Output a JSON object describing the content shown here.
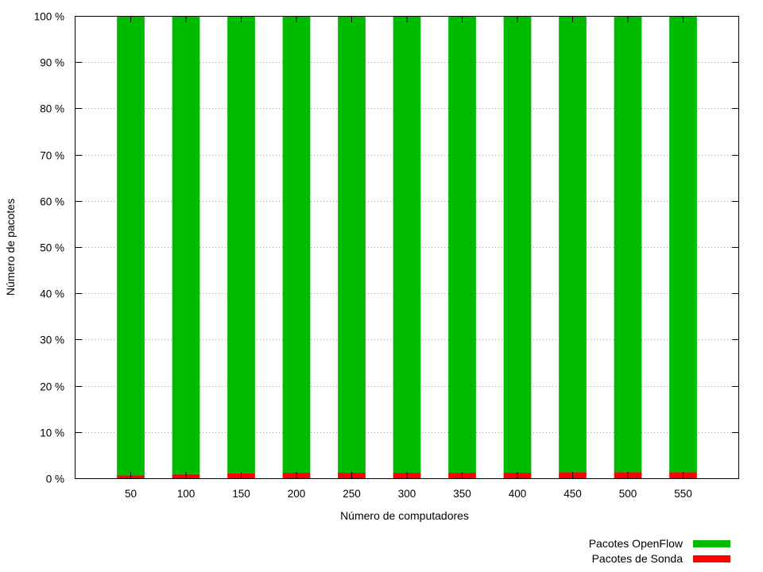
{
  "chart_data": {
    "type": "bar",
    "stacked": true,
    "xlabel": "Número de computadores",
    "ylabel": "Número de pacotes",
    "categories": [
      "50",
      "100",
      "150",
      "200",
      "250",
      "300",
      "350",
      "400",
      "450",
      "500",
      "550"
    ],
    "series": [
      {
        "name": "Pacotes de Sonda",
        "color": "#ff0000",
        "values": [
          0.6,
          0.9,
          1.1,
          1.2,
          1.2,
          1.2,
          1.2,
          1.2,
          1.3,
          1.3,
          1.3
        ]
      },
      {
        "name": "Pacotes OpenFlow",
        "color": "#00bb00",
        "values": [
          99.4,
          99.1,
          98.9,
          98.8,
          98.8,
          98.8,
          98.8,
          98.8,
          98.7,
          98.7,
          98.7
        ]
      }
    ],
    "ylim": [
      0,
      100
    ],
    "yticks": [
      0,
      10,
      20,
      30,
      40,
      50,
      60,
      70,
      80,
      90,
      100
    ],
    "ytick_suffix": " %",
    "grid": true,
    "legend": {
      "placement": "below-right",
      "entries": [
        "Pacotes OpenFlow",
        "Pacotes de Sonda"
      ]
    }
  }
}
